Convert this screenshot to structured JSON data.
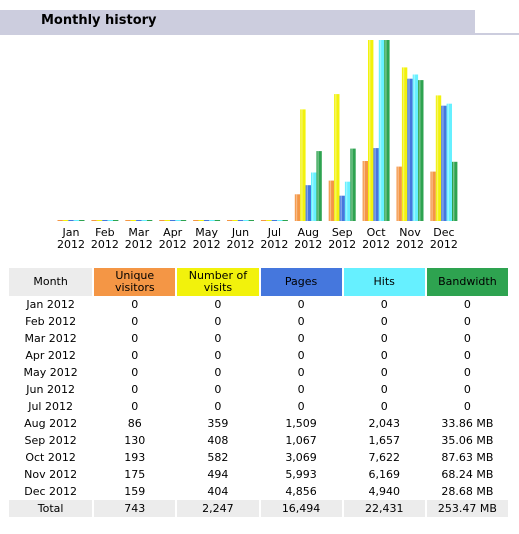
{
  "page": {
    "title": "Monthly history"
  },
  "colors": {
    "unique": "#f49645",
    "visits": "#f2f20c",
    "pages": "#4577dd",
    "hits": "#66f0ff",
    "bandwidth": "#2ea350",
    "header": "#cccdde"
  },
  "table": {
    "headers": {
      "month": "Month",
      "unique": "Unique visitors",
      "visits": "Number of visits",
      "pages": "Pages",
      "hits": "Hits",
      "bandwidth": "Bandwidth"
    },
    "rows": [
      {
        "month": "Jan 2012",
        "unique": "0",
        "visits": "0",
        "pages": "0",
        "hits": "0",
        "bandwidth": "0"
      },
      {
        "month": "Feb 2012",
        "unique": "0",
        "visits": "0",
        "pages": "0",
        "hits": "0",
        "bandwidth": "0"
      },
      {
        "month": "Mar 2012",
        "unique": "0",
        "visits": "0",
        "pages": "0",
        "hits": "0",
        "bandwidth": "0"
      },
      {
        "month": "Apr 2012",
        "unique": "0",
        "visits": "0",
        "pages": "0",
        "hits": "0",
        "bandwidth": "0"
      },
      {
        "month": "May 2012",
        "unique": "0",
        "visits": "0",
        "pages": "0",
        "hits": "0",
        "bandwidth": "0"
      },
      {
        "month": "Jun 2012",
        "unique": "0",
        "visits": "0",
        "pages": "0",
        "hits": "0",
        "bandwidth": "0"
      },
      {
        "month": "Jul 2012",
        "unique": "0",
        "visits": "0",
        "pages": "0",
        "hits": "0",
        "bandwidth": "0"
      },
      {
        "month": "Aug 2012",
        "unique": "86",
        "visits": "359",
        "pages": "1,509",
        "hits": "2,043",
        "bandwidth": "33.86 MB"
      },
      {
        "month": "Sep 2012",
        "unique": "130",
        "visits": "408",
        "pages": "1,067",
        "hits": "1,657",
        "bandwidth": "35.06 MB"
      },
      {
        "month": "Oct 2012",
        "unique": "193",
        "visits": "582",
        "pages": "3,069",
        "hits": "7,622",
        "bandwidth": "87.63 MB"
      },
      {
        "month": "Nov 2012",
        "unique": "175",
        "visits": "494",
        "pages": "5,993",
        "hits": "6,169",
        "bandwidth": "68.24 MB"
      },
      {
        "month": "Dec 2012",
        "unique": "159",
        "visits": "404",
        "pages": "4,856",
        "hits": "4,940",
        "bandwidth": "28.68 MB"
      }
    ],
    "total": {
      "month": "Total",
      "unique": "743",
      "visits": "2,247",
      "pages": "16,494",
      "hits": "22,431",
      "bandwidth": "253.47 MB"
    }
  },
  "chart_data": {
    "type": "bar",
    "categories": [
      "Jan",
      "Feb",
      "Mar",
      "Apr",
      "May",
      "Jun",
      "Jul",
      "Aug",
      "Sep",
      "Oct",
      "Nov",
      "Dec"
    ],
    "years": [
      "2012",
      "2012",
      "2012",
      "2012",
      "2012",
      "2012",
      "2012",
      "2012",
      "2012",
      "2012",
      "2012",
      "2012"
    ],
    "series": [
      {
        "key": "unique",
        "values": [
          0,
          0,
          0,
          0,
          0,
          0,
          0,
          86,
          130,
          193,
          175,
          159
        ]
      },
      {
        "key": "visits",
        "values": [
          0,
          0,
          0,
          0,
          0,
          0,
          0,
          359,
          408,
          582,
          494,
          404
        ]
      },
      {
        "key": "pages",
        "values": [
          0,
          0,
          0,
          0,
          0,
          0,
          0,
          1509,
          1067,
          3069,
          5993,
          4856
        ]
      },
      {
        "key": "hits",
        "values": [
          0,
          0,
          0,
          0,
          0,
          0,
          0,
          2043,
          1657,
          7622,
          6169,
          4940
        ]
      },
      {
        "key": "bandwidth",
        "values": [
          0,
          0,
          0,
          0,
          0,
          0,
          0,
          33.86,
          35.06,
          87.63,
          68.24,
          28.68
        ]
      }
    ],
    "scale_groups": {
      "unique": "visits",
      "visits": "visits",
      "pages": "hits",
      "hits": "hits",
      "bandwidth": "bandwidth"
    },
    "grid": false,
    "legend": "none"
  }
}
